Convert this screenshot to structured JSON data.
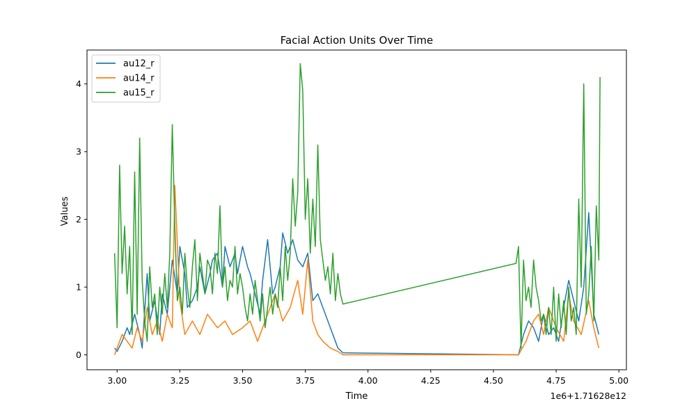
{
  "chart_data": {
    "type": "line",
    "title": "Facial Action Units Over Time",
    "xlabel": "Time",
    "ylabel": "Values",
    "offset_text": "1e6+1.71628e12",
    "xlim": [
      2.88,
      5.03
    ],
    "ylim": [
      -0.22,
      4.5
    ],
    "xticks": [
      3.0,
      3.25,
      3.5,
      3.75,
      4.0,
      4.25,
      4.5,
      4.75,
      5.0
    ],
    "xtick_labels": [
      "3.00",
      "3.25",
      "3.50",
      "3.75",
      "4.00",
      "4.25",
      "4.50",
      "4.75",
      "5.00"
    ],
    "yticks": [
      0,
      1,
      2,
      3,
      4
    ],
    "ytick_labels": [
      "0",
      "1",
      "2",
      "3",
      "4"
    ],
    "grid": false,
    "legend_position": "top-left",
    "series": [
      {
        "name": "au12_r",
        "color": "#1f77b4",
        "x": [
          2.99,
          3.0,
          3.02,
          3.04,
          3.05,
          3.07,
          3.09,
          3.1,
          3.12,
          3.13,
          3.15,
          3.17,
          3.18,
          3.2,
          3.21,
          3.22,
          3.24,
          3.25,
          3.27,
          3.28,
          3.3,
          3.32,
          3.33,
          3.35,
          3.37,
          3.38,
          3.4,
          3.42,
          3.43,
          3.45,
          3.47,
          3.48,
          3.5,
          3.52,
          3.53,
          3.55,
          3.57,
          3.58,
          3.6,
          3.62,
          3.63,
          3.65,
          3.66,
          3.68,
          3.7,
          3.72,
          3.74,
          3.76,
          3.78,
          3.8,
          3.82,
          3.84,
          3.86,
          3.88,
          3.9,
          4.6,
          4.62,
          4.64,
          4.66,
          4.68,
          4.7,
          4.72,
          4.74,
          4.76,
          4.78,
          4.8,
          4.82,
          4.84,
          4.86,
          4.88,
          4.9,
          4.92
        ],
        "y": [
          0.1,
          0.05,
          0.2,
          0.4,
          0.3,
          0.6,
          0.3,
          0.1,
          1.2,
          0.5,
          0.8,
          0.3,
          0.9,
          0.6,
          1.0,
          1.4,
          0.9,
          1.6,
          1.2,
          0.7,
          0.8,
          1.0,
          1.3,
          0.9,
          1.2,
          1.4,
          1.5,
          1.0,
          1.6,
          1.3,
          1.5,
          1.2,
          1.6,
          1.3,
          1.2,
          0.9,
          0.6,
          1.1,
          1.7,
          0.9,
          1.0,
          1.3,
          1.8,
          1.5,
          1.7,
          1.4,
          1.3,
          1.5,
          0.8,
          0.9,
          0.7,
          0.5,
          0.3,
          0.1,
          0.03,
          0.0,
          0.3,
          0.5,
          0.4,
          0.2,
          0.6,
          0.3,
          0.4,
          0.2,
          0.7,
          1.1,
          0.8,
          0.5,
          1.0,
          2.1,
          0.6,
          0.3
        ]
      },
      {
        "name": "au14_r",
        "color": "#ff7f0e",
        "x": [
          2.99,
          3.0,
          3.02,
          3.04,
          3.06,
          3.08,
          3.1,
          3.12,
          3.14,
          3.16,
          3.18,
          3.2,
          3.22,
          3.23,
          3.25,
          3.27,
          3.3,
          3.33,
          3.36,
          3.4,
          3.43,
          3.46,
          3.5,
          3.53,
          3.56,
          3.6,
          3.63,
          3.66,
          3.69,
          3.72,
          3.74,
          3.76,
          3.78,
          3.8,
          3.82,
          3.85,
          3.88,
          3.9,
          4.6,
          4.63,
          4.66,
          4.68,
          4.7,
          4.72,
          4.75,
          4.78,
          4.8,
          4.82,
          4.85,
          4.88,
          4.9,
          4.92
        ],
        "y": [
          0.0,
          0.1,
          0.3,
          0.2,
          0.1,
          0.4,
          0.2,
          0.7,
          0.3,
          0.5,
          0.2,
          0.6,
          0.4,
          2.5,
          0.8,
          0.3,
          0.5,
          0.3,
          0.6,
          0.4,
          0.5,
          0.3,
          0.4,
          0.5,
          0.2,
          0.6,
          0.9,
          0.5,
          0.7,
          1.1,
          0.6,
          1.4,
          0.5,
          0.3,
          0.2,
          0.1,
          0.05,
          0.0,
          0.0,
          0.2,
          0.5,
          0.6,
          0.3,
          0.7,
          0.4,
          0.2,
          0.9,
          0.5,
          0.3,
          0.8,
          0.4,
          0.1
        ]
      },
      {
        "name": "au15_r",
        "color": "#2ca02c",
        "x": [
          2.99,
          3.0,
          3.01,
          3.02,
          3.03,
          3.04,
          3.05,
          3.06,
          3.07,
          3.08,
          3.09,
          3.1,
          3.11,
          3.12,
          3.13,
          3.14,
          3.15,
          3.16,
          3.17,
          3.18,
          3.19,
          3.2,
          3.21,
          3.22,
          3.23,
          3.24,
          3.25,
          3.26,
          3.27,
          3.28,
          3.29,
          3.3,
          3.31,
          3.32,
          3.33,
          3.34,
          3.35,
          3.36,
          3.37,
          3.38,
          3.39,
          3.4,
          3.41,
          3.42,
          3.43,
          3.44,
          3.45,
          3.46,
          3.47,
          3.48,
          3.49,
          3.5,
          3.51,
          3.52,
          3.53,
          3.54,
          3.55,
          3.56,
          3.57,
          3.58,
          3.59,
          3.6,
          3.61,
          3.62,
          3.63,
          3.64,
          3.65,
          3.66,
          3.67,
          3.68,
          3.69,
          3.7,
          3.71,
          3.72,
          3.73,
          3.74,
          3.75,
          3.76,
          3.77,
          3.78,
          3.79,
          3.8,
          3.81,
          3.82,
          3.83,
          3.84,
          3.85,
          3.86,
          3.87,
          3.88,
          3.89,
          3.9,
          4.59,
          4.6,
          4.61,
          4.62,
          4.63,
          4.64,
          4.65,
          4.66,
          4.67,
          4.68,
          4.69,
          4.7,
          4.71,
          4.72,
          4.73,
          4.74,
          4.75,
          4.76,
          4.77,
          4.78,
          4.79,
          4.8,
          4.81,
          4.82,
          4.83,
          4.84,
          4.85,
          4.86,
          4.87,
          4.88,
          4.89,
          4.9,
          4.91,
          4.92,
          4.925
        ],
        "y": [
          1.5,
          0.4,
          2.8,
          1.2,
          1.9,
          0.9,
          1.6,
          0.3,
          2.7,
          0.6,
          3.2,
          1.1,
          0.5,
          0.2,
          1.3,
          0.7,
          0.9,
          0.3,
          1.0,
          0.6,
          1.2,
          0.7,
          1.5,
          3.4,
          1.9,
          0.8,
          1.0,
          0.6,
          1.5,
          1.0,
          0.7,
          1.3,
          1.7,
          0.8,
          1.5,
          1.2,
          0.9,
          1.4,
          1.3,
          0.9,
          1.5,
          1.2,
          2.2,
          1.0,
          1.3,
          0.8,
          1.1,
          1.0,
          1.6,
          0.9,
          1.2,
          1.0,
          0.7,
          0.5,
          0.9,
          0.6,
          1.1,
          0.8,
          0.5,
          0.9,
          0.4,
          0.7,
          1.0,
          0.6,
          0.9,
          0.7,
          1.3,
          0.8,
          1.6,
          1.1,
          1.5,
          2.6,
          1.9,
          2.4,
          4.3,
          3.9,
          2.0,
          2.6,
          1.5,
          2.3,
          1.6,
          3.1,
          1.7,
          1.4,
          1.1,
          1.3,
          0.9,
          1.5,
          0.8,
          1.2,
          0.9,
          0.75,
          1.35,
          1.6,
          0.1,
          1.4,
          0.8,
          1.0,
          0.7,
          1.4,
          1.0,
          0.8,
          0.5,
          0.6,
          0.3,
          0.7,
          0.3,
          1.0,
          0.2,
          0.9,
          0.4,
          0.8,
          0.3,
          1.0,
          0.5,
          0.7,
          0.3,
          2.3,
          1.0,
          4.0,
          0.6,
          0.9,
          1.6,
          0.5,
          2.2,
          1.4,
          4.1
        ]
      }
    ]
  }
}
